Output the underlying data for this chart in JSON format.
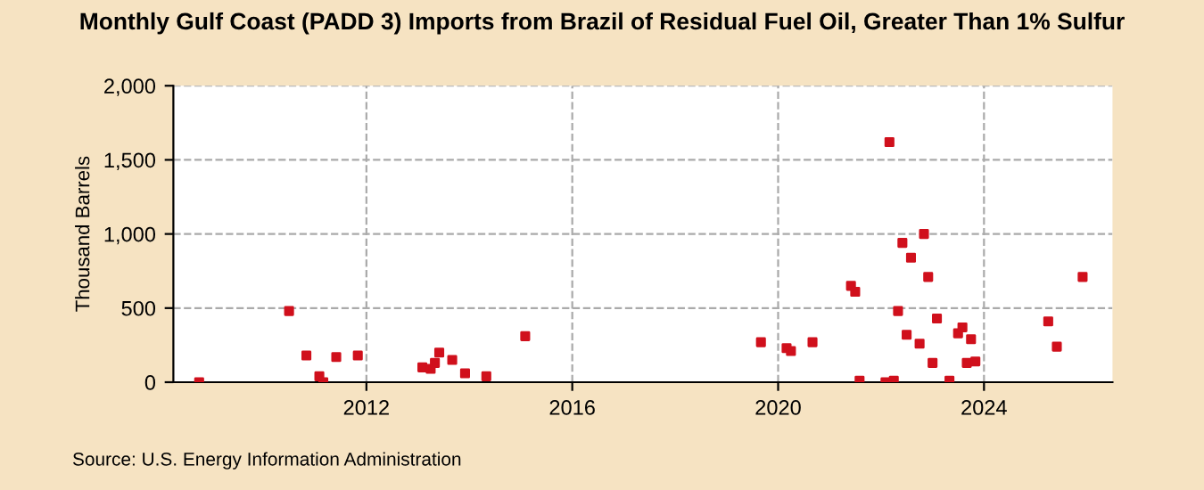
{
  "chart_data": {
    "type": "scatter",
    "title": "Monthly Gulf Coast (PADD 3) Imports from Brazil of Residual Fuel Oil, Greater Than 1% Sulfur",
    "ylabel": "Thousand Barrels",
    "annotations": [
      "Source: U.S. Energy Information Administration"
    ],
    "x": [
      "2008-10",
      "2010-07",
      "2010-11",
      "2011-02",
      "2011-03",
      "2011-06",
      "2011-11",
      "2013-02",
      "2013-04",
      "2013-05",
      "2013-06",
      "2013-09",
      "2013-12",
      "2014-05",
      "2015-02",
      "2019-09",
      "2020-03",
      "2020-04",
      "2020-09",
      "2021-06",
      "2021-07",
      "2021-08",
      "2022-02",
      "2022-03",
      "2022-04",
      "2022-05",
      "2022-06",
      "2022-07",
      "2022-08",
      "2022-10",
      "2022-11",
      "2022-12",
      "2023-01",
      "2023-02",
      "2023-05",
      "2023-07",
      "2023-08",
      "2023-09",
      "2023-10",
      "2023-11",
      "2025-04",
      "2025-06",
      "2025-12"
    ],
    "series": [
      {
        "color": "#d0101c",
        "values": [
          0,
          480,
          180,
          40,
          0,
          170,
          180,
          100,
          90,
          130,
          200,
          150,
          60,
          40,
          310,
          270,
          230,
          210,
          270,
          650,
          610,
          10,
          0,
          1620,
          10,
          480,
          940,
          320,
          840,
          260,
          1000,
          710,
          130,
          430,
          10,
          330,
          370,
          130,
          290,
          140,
          410,
          240,
          710
        ]
      }
    ],
    "xlim": [
      "2008-04",
      "2026-07"
    ],
    "xticks": [
      {
        "value": "2012-01",
        "label": "2012"
      },
      {
        "value": "2016-01",
        "label": "2016"
      },
      {
        "value": "2020-01",
        "label": "2020"
      },
      {
        "value": "2024-01",
        "label": "2024"
      }
    ],
    "ylim": [
      0,
      2000
    ],
    "yticks": [
      {
        "value": 0,
        "label": "0"
      },
      {
        "value": 500,
        "label": "500"
      },
      {
        "value": 1000,
        "label": "1,000"
      },
      {
        "value": 1500,
        "label": "1,500"
      },
      {
        "value": 2000,
        "label": "2,000"
      }
    ],
    "grid": true,
    "marker": "square"
  }
}
